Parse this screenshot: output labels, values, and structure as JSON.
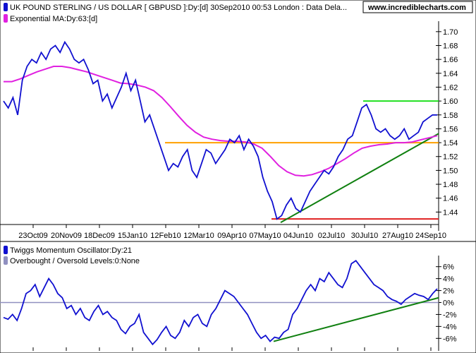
{
  "chart_data": [
    {
      "type": "line",
      "title": "UK POUND STERLING / US DOLLAR [ GBPUSD ]:Dy:[d]   30Sep2010 00:53 London : Data Dela...",
      "brand": "www.incrediblecharts.com",
      "legend": [
        {
          "label": "UK POUND STERLING / US DOLLAR [ GBPUSD ]:Dy:[d]   30Sep2010 00:53 London : Data Dela...",
          "color": "#1010d0"
        },
        {
          "label": "Exponential MA:Dy:63:[d]",
          "color": "#e020e0"
        }
      ],
      "x_tick_labels": [
        "23Oct09",
        "20Nov09",
        "18Dec09",
        "15Jan10",
        "12Feb10",
        "12Mar10",
        "09Apr10",
        "07May10",
        "04Jun10",
        "02Jul10",
        "30Jul10",
        "27Aug10",
        "24Sep10"
      ],
      "y_tick_labels": [
        "1.44",
        "1.46",
        "1.48",
        "1.50",
        "1.52",
        "1.54",
        "1.56",
        "1.58",
        "1.60",
        "1.62",
        "1.64",
        "1.66",
        "1.68",
        "1.70"
      ],
      "ylim": [
        1.42,
        1.71
      ],
      "series": [
        {
          "name": "GBPUSD",
          "color": "#1010d0",
          "values": [
            1.6,
            1.59,
            1.605,
            1.58,
            1.63,
            1.65,
            1.66,
            1.655,
            1.67,
            1.66,
            1.675,
            1.68,
            1.67,
            1.685,
            1.675,
            1.66,
            1.655,
            1.66,
            1.645,
            1.625,
            1.63,
            1.6,
            1.61,
            1.59,
            1.605,
            1.62,
            1.64,
            1.615,
            1.63,
            1.6,
            1.57,
            1.58,
            1.56,
            1.54,
            1.52,
            1.5,
            1.51,
            1.505,
            1.52,
            1.53,
            1.5,
            1.49,
            1.51,
            1.53,
            1.525,
            1.51,
            1.52,
            1.53,
            1.545,
            1.54,
            1.55,
            1.53,
            1.545,
            1.535,
            1.52,
            1.49,
            1.47,
            1.455,
            1.43,
            1.435,
            1.45,
            1.46,
            1.445,
            1.44,
            1.455,
            1.47,
            1.48,
            1.49,
            1.5,
            1.495,
            1.505,
            1.52,
            1.53,
            1.545,
            1.55,
            1.57,
            1.59,
            1.595,
            1.58,
            1.56,
            1.555,
            1.56,
            1.55,
            1.545,
            1.55,
            1.56,
            1.545,
            1.55,
            1.555,
            1.57,
            1.575,
            1.58,
            1.58
          ]
        },
        {
          "name": "Exponential MA",
          "color": "#e020e0",
          "values": [
            1.628,
            1.628,
            1.632,
            1.637,
            1.642,
            1.646,
            1.65,
            1.65,
            1.648,
            1.645,
            1.642,
            1.638,
            1.634,
            1.63,
            1.626,
            1.625,
            1.623,
            1.62,
            1.615,
            1.605,
            1.592,
            1.578,
            1.565,
            1.555,
            1.548,
            1.545,
            1.543,
            1.542,
            1.542,
            1.541,
            1.538,
            1.532,
            1.52,
            1.507,
            1.498,
            1.493,
            1.492,
            1.494,
            1.498,
            1.503,
            1.51,
            1.517,
            1.525,
            1.532,
            1.535,
            1.537,
            1.538,
            1.54,
            1.54,
            1.541,
            1.544,
            1.547,
            1.55
          ]
        }
      ],
      "lines": [
        {
          "name": "resistance-1.60",
          "color": "#20e020"
        },
        {
          "name": "support-resistance-1.54",
          "color": "#ffa000"
        },
        {
          "name": "support-1.43",
          "color": "#e02020"
        },
        {
          "name": "rising-trendline",
          "color": "#108010"
        }
      ]
    },
    {
      "type": "line",
      "legend": [
        {
          "label": "Twiggs Momentum Oscillator:Dy:21",
          "color": "#1010d0"
        },
        {
          "label": "Overbought / Oversold Levels:0:None",
          "color": "#9090c0"
        }
      ],
      "y_tick_labels": [
        "-6%",
        "-4%",
        "-2%",
        "0%",
        "2%",
        "4%",
        "6%"
      ],
      "ylim": [
        -7.5,
        7.5
      ],
      "series": [
        {
          "name": "Twiggs Momentum Oscillator",
          "color": "#1010d0",
          "values": [
            -2.5,
            -2.8,
            -2,
            -3,
            -1,
            1.5,
            2,
            3,
            1,
            2.5,
            4,
            3,
            1.5,
            0.8,
            -1,
            -0.5,
            -2,
            -1,
            -2.5,
            -3,
            -1.5,
            -0.5,
            -2,
            -1.5,
            -2.5,
            -3,
            -4.5,
            -5.2,
            -4,
            -3.5,
            -2,
            -5,
            -6,
            -7,
            -6.2,
            -5,
            -4,
            -5.5,
            -6,
            -5,
            -3,
            -4,
            -2.5,
            -2,
            -3.5,
            -4,
            -2,
            -1,
            0.5,
            2,
            1.5,
            1,
            0,
            -1,
            -2,
            -3.5,
            -5,
            -6,
            -5.5,
            -6.5,
            -5.8,
            -6,
            -5,
            -4.5,
            -2,
            -1,
            0.5,
            2,
            3,
            2,
            4,
            3.5,
            5,
            4,
            3,
            2.5,
            4,
            6.5,
            7,
            6,
            5,
            4,
            3,
            2.5,
            2,
            1,
            0.5,
            0.2,
            -0.3,
            0.5,
            1,
            1.5,
            1.2,
            1,
            0.5,
            1.5,
            2.3
          ]
        }
      ]
    }
  ]
}
